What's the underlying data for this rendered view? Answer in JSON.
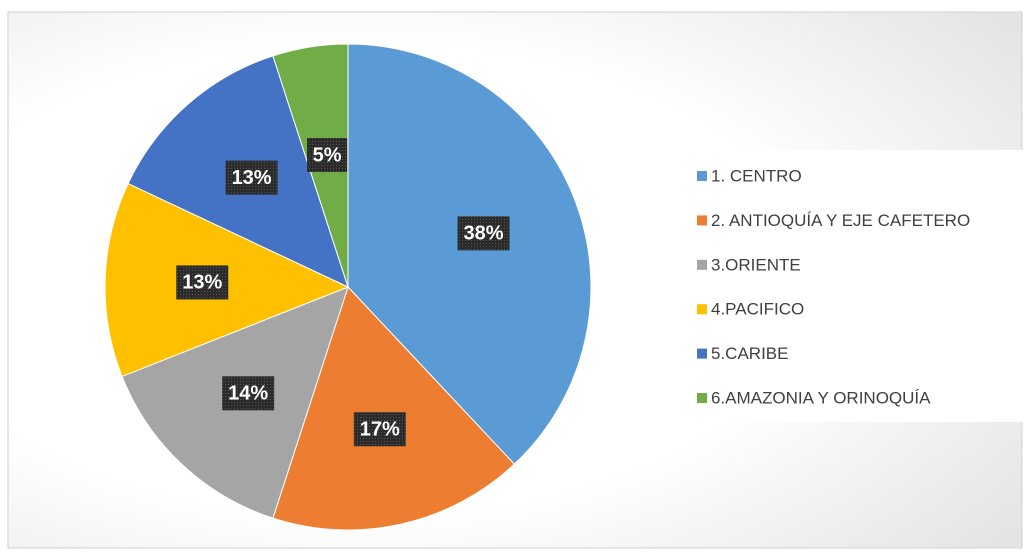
{
  "chart_data": {
    "type": "pie",
    "categories": [
      "1. CENTRO",
      "2. ANTIOQUÍA Y EJE CAFETERO",
      "3.ORIENTE",
      "4.PACIFICO",
      "5.CARIBE",
      "6.AMAZONIA Y ORINOQUÍA"
    ],
    "values": [
      38,
      17,
      14,
      13,
      13,
      5
    ],
    "value_labels": [
      "38%",
      "17%",
      "14%",
      "13%",
      "13%",
      "5%"
    ],
    "colors": [
      "#5b9bd5",
      "#ed7d31",
      "#a5a5a5",
      "#ffc000",
      "#4472c4",
      "#70ad47"
    ],
    "legend": "right"
  }
}
